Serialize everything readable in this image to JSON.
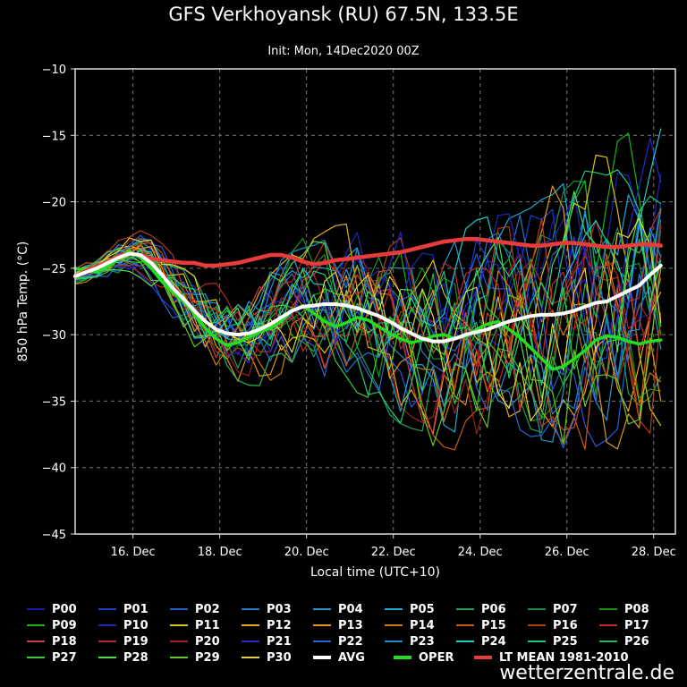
{
  "title": "GFS Verkhoyansk (RU) 67.5N, 133.5E",
  "subtitle": "Init: Mon, 14Dec2020 00Z",
  "brand": "wetterzentrale.de",
  "chart_data": {
    "type": "line",
    "title": "GFS Verkhoyansk (RU) 67.5N, 133.5E",
    "subtitle": "Init: Mon, 14Dec2020 00Z",
    "xlabel": "Local time (UTC+10)",
    "ylabel": "850 hPa Temp. (°C)",
    "x_start_day": 14.667,
    "x_step_days": 0.25,
    "xlim_days": [
      14.667,
      28.5
    ],
    "x_ticks": [
      16,
      18,
      20,
      22,
      24,
      26,
      28
    ],
    "x_tick_labels": [
      "16. Dec",
      "18. Dec",
      "20. Dec",
      "22. Dec",
      "24. Dec",
      "26. Dec",
      "28. Dec"
    ],
    "ylim": [
      -45,
      -10
    ],
    "y_ticks": [
      -10,
      -15,
      -20,
      -25,
      -30,
      -35,
      -40,
      -45
    ],
    "y_tick_labels": [
      "−10",
      "−15",
      "−20",
      "−25",
      "−30",
      "−35",
      "−40",
      "−45"
    ],
    "grid": true,
    "legend_position": "bottom",
    "avg_color": "#ffffff",
    "oper_color": "#22dd22",
    "ltmean_color": "#e83c3c",
    "series": [
      {
        "name": "AVG",
        "color": "#ffffff",
        "values": [
          -25.6,
          -25.3,
          -25.0,
          -24.6,
          -24.2,
          -23.9,
          -24.0,
          -24.6,
          -25.5,
          -26.5,
          -27.3,
          -28.2,
          -29.0,
          -29.6,
          -29.9,
          -30.0,
          -29.9,
          -29.6,
          -29.2,
          -28.7,
          -28.2,
          -27.9,
          -27.8,
          -27.7,
          -27.7,
          -27.8,
          -28.0,
          -28.3,
          -28.6,
          -29.0,
          -29.5,
          -29.9,
          -30.3,
          -30.5,
          -30.5,
          -30.3,
          -30.0,
          -29.8,
          -29.6,
          -29.3,
          -29.0,
          -28.8,
          -28.6,
          -28.5,
          -28.5,
          -28.4,
          -28.2,
          -27.9,
          -27.6,
          -27.5,
          -27.1,
          -26.7,
          -26.3,
          -25.5,
          -24.8
        ]
      },
      {
        "name": "OPER",
        "color": "#22dd22",
        "values": [
          -25.0,
          -25.2,
          -25.3,
          -24.9,
          -24.2,
          -23.7,
          -24.2,
          -25.0,
          -26.0,
          -26.8,
          -27.5,
          -28.4,
          -29.5,
          -30.3,
          -30.8,
          -30.6,
          -30.2,
          -29.8,
          -29.5,
          -29.0,
          -28.2,
          -27.8,
          -28.4,
          -29.0,
          -29.4,
          -29.1,
          -28.7,
          -28.9,
          -29.4,
          -29.9,
          -30.3,
          -30.6,
          -30.4,
          -30.1,
          -30.0,
          -30.3,
          -30.1,
          -29.6,
          -29.2,
          -29.0,
          -29.6,
          -30.2,
          -31.0,
          -31.8,
          -32.6,
          -32.4,
          -31.8,
          -31.2,
          -30.4,
          -30.1,
          -30.2,
          -30.5,
          -30.7,
          -30.5,
          -30.4
        ]
      },
      {
        "name": "LT MEAN 1981-2010",
        "color": "#e83c3c",
        "values": [
          -25.6,
          -25.2,
          -24.9,
          -24.5,
          -24.1,
          -23.9,
          -24.0,
          -24.3,
          -24.4,
          -24.5,
          -24.6,
          -24.6,
          -24.8,
          -24.8,
          -24.7,
          -24.6,
          -24.4,
          -24.2,
          -24.0,
          -24.0,
          -24.2,
          -24.5,
          -24.7,
          -24.6,
          -24.4,
          -24.3,
          -24.2,
          -24.1,
          -24.0,
          -23.9,
          -23.8,
          -23.6,
          -23.4,
          -23.2,
          -23.0,
          -22.9,
          -22.8,
          -22.8,
          -22.9,
          -23.0,
          -23.1,
          -23.2,
          -23.3,
          -23.3,
          -23.2,
          -23.1,
          -23.1,
          -23.2,
          -23.3,
          -23.4,
          -23.4,
          -23.3,
          -23.2,
          -23.2,
          -23.3
        ]
      }
    ],
    "members": [
      {
        "name": "P00",
        "color": "#1a1ab4"
      },
      {
        "name": "P01",
        "color": "#1e3cd2"
      },
      {
        "name": "P02",
        "color": "#2a5ad8"
      },
      {
        "name": "P03",
        "color": "#2878c8"
      },
      {
        "name": "P04",
        "color": "#2a96c8"
      },
      {
        "name": "P05",
        "color": "#1eaad2"
      },
      {
        "name": "P06",
        "color": "#1ea05a"
      },
      {
        "name": "P07",
        "color": "#1e8c3c"
      },
      {
        "name": "P08",
        "color": "#149614"
      },
      {
        "name": "P09",
        "color": "#14b414"
      },
      {
        "name": "P10",
        "color": "#1e28b4"
      },
      {
        "name": "P11",
        "color": "#d2c814"
      },
      {
        "name": "P12",
        "color": "#e6aa1e"
      },
      {
        "name": "P13",
        "color": "#e6961e"
      },
      {
        "name": "P14",
        "color": "#d27814"
      },
      {
        "name": "P15",
        "color": "#c85a14"
      },
      {
        "name": "P16",
        "color": "#b43c14"
      },
      {
        "name": "P17",
        "color": "#c8281e"
      },
      {
        "name": "P18",
        "color": "#c83c3c"
      },
      {
        "name": "P19",
        "color": "#b42828"
      },
      {
        "name": "P20",
        "color": "#a01e1e"
      },
      {
        "name": "P21",
        "color": "#2828c8"
      },
      {
        "name": "P22",
        "color": "#2a64d2"
      },
      {
        "name": "P23",
        "color": "#1e8cc8"
      },
      {
        "name": "P24",
        "color": "#1ec8c8"
      },
      {
        "name": "P25",
        "color": "#1ec878"
      },
      {
        "name": "P26",
        "color": "#28b450"
      },
      {
        "name": "P27",
        "color": "#3cc83c"
      },
      {
        "name": "P28",
        "color": "#50dc50"
      },
      {
        "name": "P29",
        "color": "#64c828"
      },
      {
        "name": "P30",
        "color": "#e6d23c"
      }
    ]
  },
  "legend": {
    "rows": [
      [
        {
          "label": "P00",
          "color": "#1a1ab4"
        },
        {
          "label": "P01",
          "color": "#1e3cd2"
        },
        {
          "label": "P02",
          "color": "#2a5ad8"
        },
        {
          "label": "P03",
          "color": "#2878c8"
        },
        {
          "label": "P04",
          "color": "#2a96c8"
        },
        {
          "label": "P05",
          "color": "#1eaad2"
        },
        {
          "label": "P06",
          "color": "#1ea05a"
        },
        {
          "label": "P07",
          "color": "#1e8c3c"
        },
        {
          "label": "P08",
          "color": "#149614"
        }
      ],
      [
        {
          "label": "P09",
          "color": "#14b414"
        },
        {
          "label": "P10",
          "color": "#1e28b4"
        },
        {
          "label": "P11",
          "color": "#d2c814"
        },
        {
          "label": "P12",
          "color": "#e6aa1e"
        },
        {
          "label": "P13",
          "color": "#e6961e"
        },
        {
          "label": "P14",
          "color": "#d27814"
        },
        {
          "label": "P15",
          "color": "#c85a14"
        },
        {
          "label": "P16",
          "color": "#b43c14"
        },
        {
          "label": "P17",
          "color": "#c8281e"
        }
      ],
      [
        {
          "label": "P18",
          "color": "#c83c3c"
        },
        {
          "label": "P19",
          "color": "#b42828"
        },
        {
          "label": "P20",
          "color": "#a01e1e"
        },
        {
          "label": "P21",
          "color": "#2828c8"
        },
        {
          "label": "P22",
          "color": "#2a64d2"
        },
        {
          "label": "P23",
          "color": "#1e8cc8"
        },
        {
          "label": "P24",
          "color": "#1ec8c8"
        },
        {
          "label": "P25",
          "color": "#1ec878"
        },
        {
          "label": "P26",
          "color": "#28b450"
        }
      ],
      [
        {
          "label": "P27",
          "color": "#3cc83c"
        },
        {
          "label": "P28",
          "color": "#50dc50"
        },
        {
          "label": "P29",
          "color": "#64c828"
        },
        {
          "label": "P30",
          "color": "#e6d23c"
        },
        {
          "label": "AVG",
          "color": "#ffffff"
        },
        {
          "label": "OPER",
          "color": "#22dd22"
        },
        {
          "label": "LT MEAN 1981-2010",
          "color": "#e83c3c"
        }
      ]
    ]
  }
}
